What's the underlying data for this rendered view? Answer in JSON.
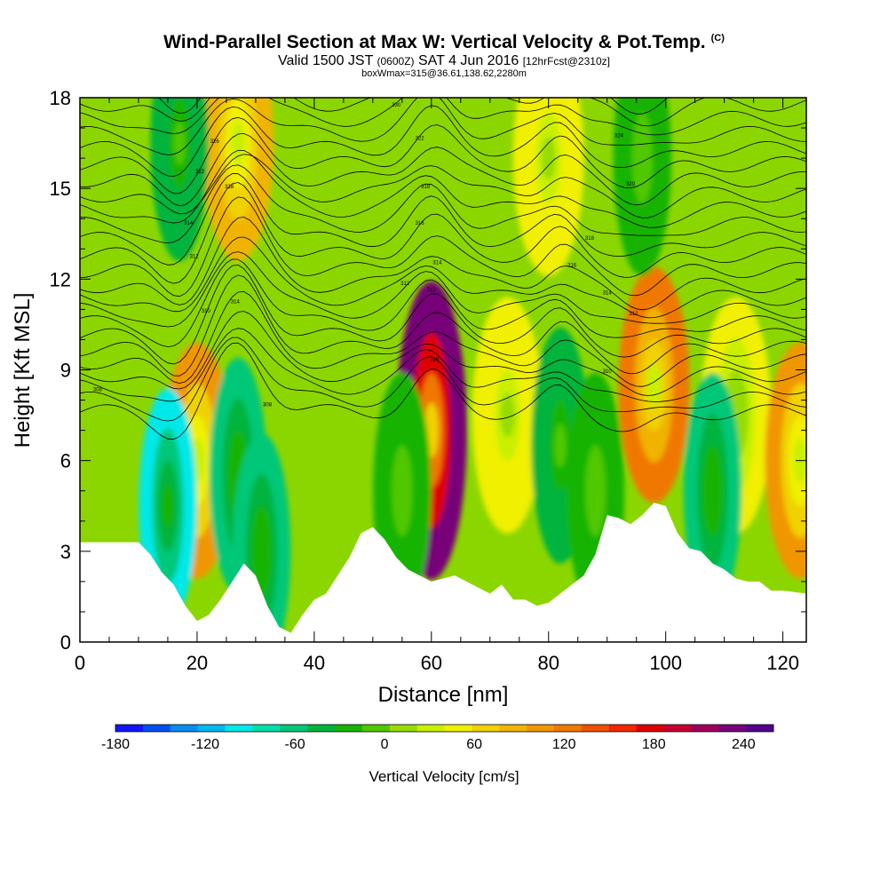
{
  "title": {
    "main": "Wind-Parallel Section at Max W: Vertical Velocity & Pot.Temp.",
    "copyright": "(C)",
    "valid_prefix": "Valid 1500 JST",
    "valid_utc": "(0600Z)",
    "valid_date": "SAT 4 Jun 2016",
    "forecast": "[12hrFcst@2310z]",
    "box": "boxWmax=315@36.61,138.62,2280m"
  },
  "chart_data": {
    "type": "heatmap",
    "xlabel": "Distance [nm]",
    "ylabel": "Height [Kft MSL]",
    "xlim": [
      0,
      124
    ],
    "ylim": [
      0,
      18
    ],
    "xticks": [
      0,
      20,
      40,
      60,
      80,
      100,
      120
    ],
    "yticks": [
      0,
      3,
      6,
      9,
      12,
      15,
      18
    ],
    "terrain_kft": {
      "x": [
        0,
        10,
        12,
        14,
        16,
        18,
        20,
        22,
        24,
        26,
        28,
        30,
        32,
        34,
        36,
        38,
        40,
        42,
        44,
        46,
        48,
        50,
        52,
        54,
        56,
        58,
        60,
        62,
        64,
        66,
        68,
        70,
        72,
        74,
        76,
        78,
        80,
        82,
        84,
        86,
        88,
        90,
        92,
        94,
        96,
        98,
        100,
        102,
        104,
        106,
        108,
        110,
        112,
        114,
        116,
        118,
        120,
        124
      ],
      "y": [
        3.3,
        3.3,
        2.9,
        2.3,
        1.9,
        1.2,
        0.7,
        0.9,
        1.4,
        2.0,
        2.6,
        2.2,
        1.2,
        0.5,
        0.3,
        0.9,
        1.4,
        1.6,
        2.2,
        2.8,
        3.6,
        3.8,
        3.4,
        2.8,
        2.4,
        2.2,
        2.0,
        2.1,
        2.2,
        2.0,
        1.8,
        1.6,
        1.9,
        1.4,
        1.4,
        1.2,
        1.3,
        1.6,
        1.9,
        2.2,
        2.9,
        4.2,
        4.1,
        3.9,
        4.2,
        4.6,
        4.5,
        3.6,
        3.1,
        3.0,
        2.6,
        2.4,
        2.1,
        2.0,
        2.0,
        1.7,
        1.7,
        1.6
      ]
    },
    "updrafts": [
      {
        "x": 20,
        "y": 6.0,
        "w_cms": 100
      },
      {
        "x": 27,
        "y": 16.5,
        "w_cms": 80
      },
      {
        "x": 60,
        "y": 7.0,
        "w_cms": 240
      },
      {
        "x": 73,
        "y": 7.5,
        "w_cms": 55
      },
      {
        "x": 80,
        "y": 16.0,
        "w_cms": 55
      },
      {
        "x": 98,
        "y": 8.5,
        "w_cms": 120
      },
      {
        "x": 112,
        "y": 7.5,
        "w_cms": 40
      },
      {
        "x": 123,
        "y": 6.0,
        "w_cms": 100
      }
    ],
    "downdrafts": [
      {
        "x": 15,
        "y": 4.5,
        "w_cms": -90
      },
      {
        "x": 17,
        "y": 16.5,
        "w_cms": -50
      },
      {
        "x": 27,
        "y": 5.5,
        "w_cms": -60
      },
      {
        "x": 31,
        "y": 3.0,
        "w_cms": -60
      },
      {
        "x": 55,
        "y": 5.0,
        "w_cms": -30
      },
      {
        "x": 82,
        "y": 6.5,
        "w_cms": -50
      },
      {
        "x": 88,
        "y": 5.0,
        "w_cms": -30
      },
      {
        "x": 108,
        "y": 5.0,
        "w_cms": -60
      },
      {
        "x": 96,
        "y": 16.0,
        "w_cms": -30
      }
    ],
    "contour_labels": [
      {
        "x": 23,
        "y": 16.5,
        "text": "326"
      },
      {
        "x": 20.5,
        "y": 15.5,
        "text": "322"
      },
      {
        "x": 25.5,
        "y": 15.0,
        "text": "318"
      },
      {
        "x": 18.5,
        "y": 13.8,
        "text": "314"
      },
      {
        "x": 19.5,
        "y": 12.7,
        "text": "312"
      },
      {
        "x": 21.5,
        "y": 10.9,
        "text": "310"
      },
      {
        "x": 26.5,
        "y": 11.2,
        "text": "314"
      },
      {
        "x": 3,
        "y": 8.3,
        "text": "308"
      },
      {
        "x": 32,
        "y": 7.8,
        "text": "308"
      },
      {
        "x": 54,
        "y": 17.7,
        "text": "330"
      },
      {
        "x": 58,
        "y": 16.6,
        "text": "322"
      },
      {
        "x": 59,
        "y": 15.0,
        "text": "318"
      },
      {
        "x": 58,
        "y": 13.8,
        "text": "316"
      },
      {
        "x": 61,
        "y": 12.5,
        "text": "314"
      },
      {
        "x": 55.5,
        "y": 11.8,
        "text": "312"
      },
      {
        "x": 60,
        "y": 11.6,
        "text": "312"
      },
      {
        "x": 60.5,
        "y": 9.3,
        "text": "310"
      },
      {
        "x": 92,
        "y": 16.7,
        "text": "324"
      },
      {
        "x": 94,
        "y": 15.1,
        "text": "320"
      },
      {
        "x": 87,
        "y": 13.3,
        "text": "318"
      },
      {
        "x": 84,
        "y": 12.4,
        "text": "316"
      },
      {
        "x": 90,
        "y": 11.5,
        "text": "314"
      },
      {
        "x": 94.5,
        "y": 10.8,
        "text": "312"
      },
      {
        "x": 90,
        "y": 8.9,
        "text": "310"
      }
    ]
  },
  "colorbar": {
    "title": "Vertical Velocity [cm/s]",
    "tick_labels": [
      "-180",
      "-120",
      "-60",
      "0",
      "60",
      "120",
      "180",
      "240"
    ],
    "tick_values": [
      -180,
      -120,
      -60,
      0,
      60,
      120,
      180,
      240
    ],
    "min": -180,
    "max": 260,
    "colors": [
      "#1414ff",
      "#0050f0",
      "#0a8cf0",
      "#00b8f0",
      "#00e8e8",
      "#00e0a8",
      "#00c878",
      "#00b43c",
      "#18b400",
      "#50c800",
      "#96dc00",
      "#c8f000",
      "#f0f000",
      "#f0d200",
      "#f0b400",
      "#f09600",
      "#f07800",
      "#f05000",
      "#f02800",
      "#e00000",
      "#c80032",
      "#a0005a",
      "#780078",
      "#50008c"
    ]
  }
}
